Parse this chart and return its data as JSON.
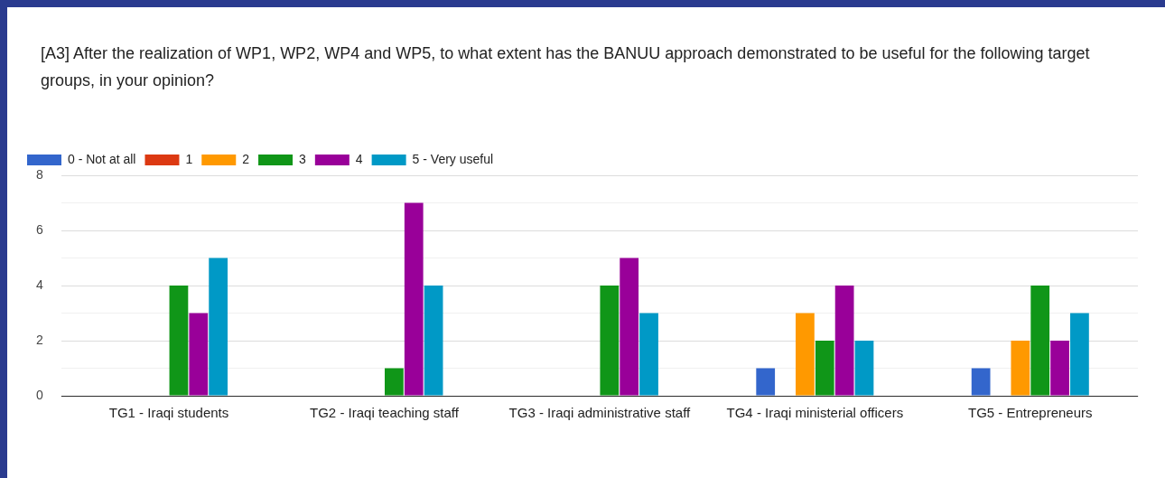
{
  "chart_data": {
    "type": "bar",
    "title": "[A3] After the realization of WP1, WP2, WP4 and WP5, to what extent has the BANUU approach demonstrated to be useful for the following target groups, in your opinion?",
    "categories": [
      "TG1 - Iraqi students",
      "TG2 - Iraqi teaching staff",
      "TG3 - Iraqi administrative staff",
      "TG4 - Iraqi ministerial officers",
      "TG5 - Entrepreneurs"
    ],
    "series": [
      {
        "name": "0 - Not at all",
        "color": "#3366cc",
        "values": [
          0,
          0,
          0,
          1,
          1
        ]
      },
      {
        "name": "1",
        "color": "#dc3912",
        "values": [
          0,
          0,
          0,
          0,
          0
        ]
      },
      {
        "name": "2",
        "color": "#ff9900",
        "values": [
          0,
          0,
          0,
          3,
          2
        ]
      },
      {
        "name": "3",
        "color": "#109618",
        "values": [
          4,
          1,
          4,
          2,
          4
        ]
      },
      {
        "name": "4",
        "color": "#990099",
        "values": [
          3,
          7,
          5,
          4,
          2
        ]
      },
      {
        "name": "5 - Very useful",
        "color": "#0099c6",
        "values": [
          5,
          4,
          3,
          2,
          3
        ]
      }
    ],
    "ylim": [
      0,
      8
    ],
    "yticks": [
      0,
      {
        "value": 1,
        "label": null
      },
      2,
      {
        "value": 3,
        "label": null
      },
      4,
      {
        "value": 5,
        "label": null
      },
      6,
      {
        "value": 7,
        "label": null
      },
      8
    ],
    "grid": "y",
    "legend": "top left"
  }
}
